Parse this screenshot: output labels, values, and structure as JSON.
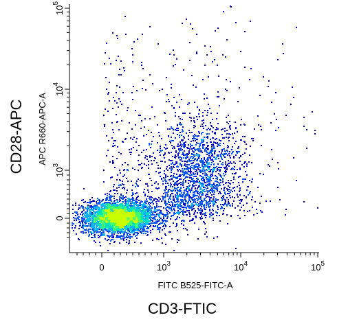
{
  "chart_data": {
    "type": "scatter",
    "subtype": "flow-cytometry-density-dot-plot",
    "title": "",
    "xlabel": "FITC B525-FITC-A",
    "ylabel": "APC R660-APC-A",
    "outer_xlabel": "CD3-FTIC",
    "outer_ylabel": "CD28-APC",
    "x_scale": "biexponential",
    "y_scale": "biexponential",
    "x_ticks": [
      {
        "value": 0,
        "base": "0",
        "exp": ""
      },
      {
        "value": 1000,
        "base": "10",
        "exp": "3"
      },
      {
        "value": 10000,
        "base": "10",
        "exp": "4"
      },
      {
        "value": 100000,
        "base": "10",
        "exp": "5"
      }
    ],
    "y_ticks": [
      {
        "value": 0,
        "base": "0",
        "exp": ""
      },
      {
        "value": 1000,
        "base": "10",
        "exp": "3"
      },
      {
        "value": 10000,
        "base": "10",
        "exp": "4"
      },
      {
        "value": 100000,
        "base": "10",
        "exp": "5"
      }
    ],
    "xlim": [
      -500,
      100000
    ],
    "ylim": [
      -500,
      100000
    ],
    "grid": false,
    "legend": "none",
    "colormap": [
      "#0000c8",
      "#0055ff",
      "#00b4ff",
      "#00e0c0",
      "#40ff70",
      "#c8ff00"
    ],
    "populations": [
      {
        "name": "",
        "center_x": 250,
        "center_y": 20,
        "spread_x": 280,
        "spread_y": 170,
        "count": 3800
      },
      {
        "name": "",
        "center_x": 3000,
        "center_y": 1000,
        "spread_x": 0.28,
        "spread_y": 0.3,
        "count": 1300
      },
      {
        "name": "",
        "center_x": 1200,
        "center_y": 500,
        "spread_x": 0.35,
        "spread_y": 0.45,
        "count": 700
      },
      {
        "name": "",
        "center_x": 2000,
        "center_y": 3000,
        "spread_x": 1.6,
        "spread_y": 1.4,
        "count": 450
      }
    ]
  }
}
